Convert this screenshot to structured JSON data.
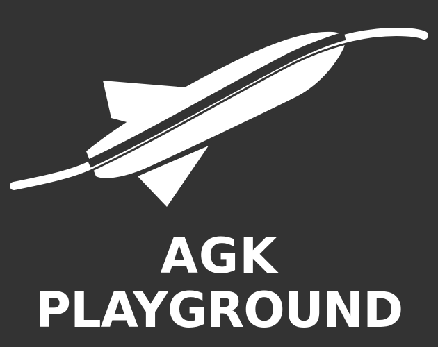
{
  "app": {
    "title_line_1": "AGK",
    "title_line_2": "PLAYGROUND"
  },
  "logo": {
    "icon": "rocket-icon",
    "description_icon": "trajectory-swoosh-icon"
  },
  "colors": {
    "background": "#333333",
    "foreground": "#ffffff"
  }
}
